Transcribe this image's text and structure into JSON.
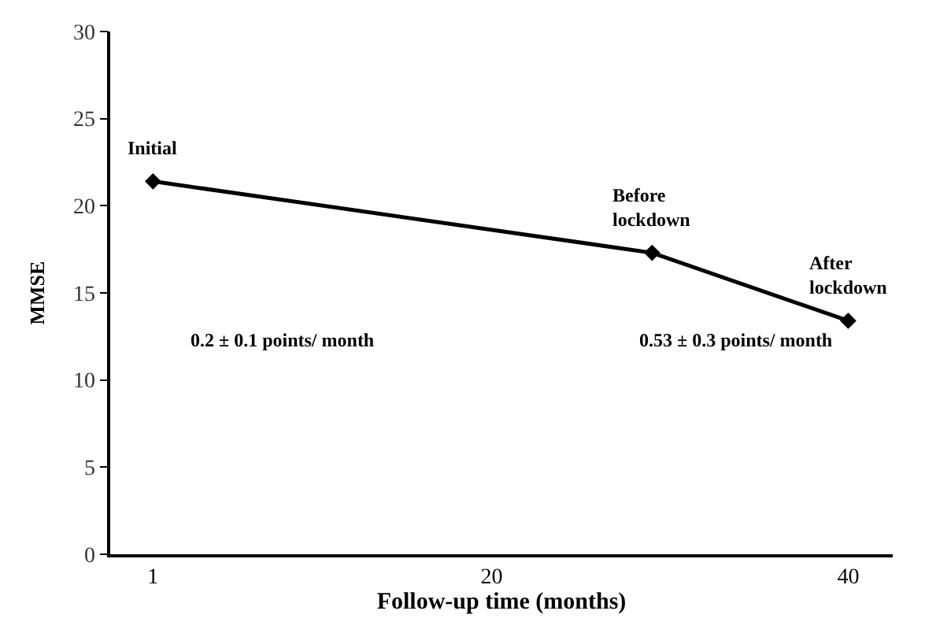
{
  "chart_data": {
    "type": "line",
    "x": [
      1,
      29,
      40
    ],
    "series": [
      {
        "color": "#000000",
        "values": [
          21.4,
          17.3,
          13.4
        ]
      }
    ],
    "xlabel": "Follow-up time (months)",
    "ylabel": "MMSE",
    "xlim": [
      -1.4,
      42.5
    ],
    "xticks": [
      1,
      20,
      40
    ],
    "ylim": [
      0,
      30
    ],
    "yticks": [
      0,
      5,
      10,
      15,
      20,
      25,
      30
    ],
    "marker": "diamond",
    "line_style": "solid",
    "annotations": [
      {
        "text": "Initial",
        "x": 1,
        "y": 21.4
      },
      {
        "text": "Before\nlockdown",
        "x": 29,
        "y": 17.3
      },
      {
        "text": "After\nlockdown",
        "x": 40,
        "y": 13.4
      },
      "0.2 ± 0.1 points/ month",
      "0.53 ± 0.3 points/ month"
    ]
  }
}
